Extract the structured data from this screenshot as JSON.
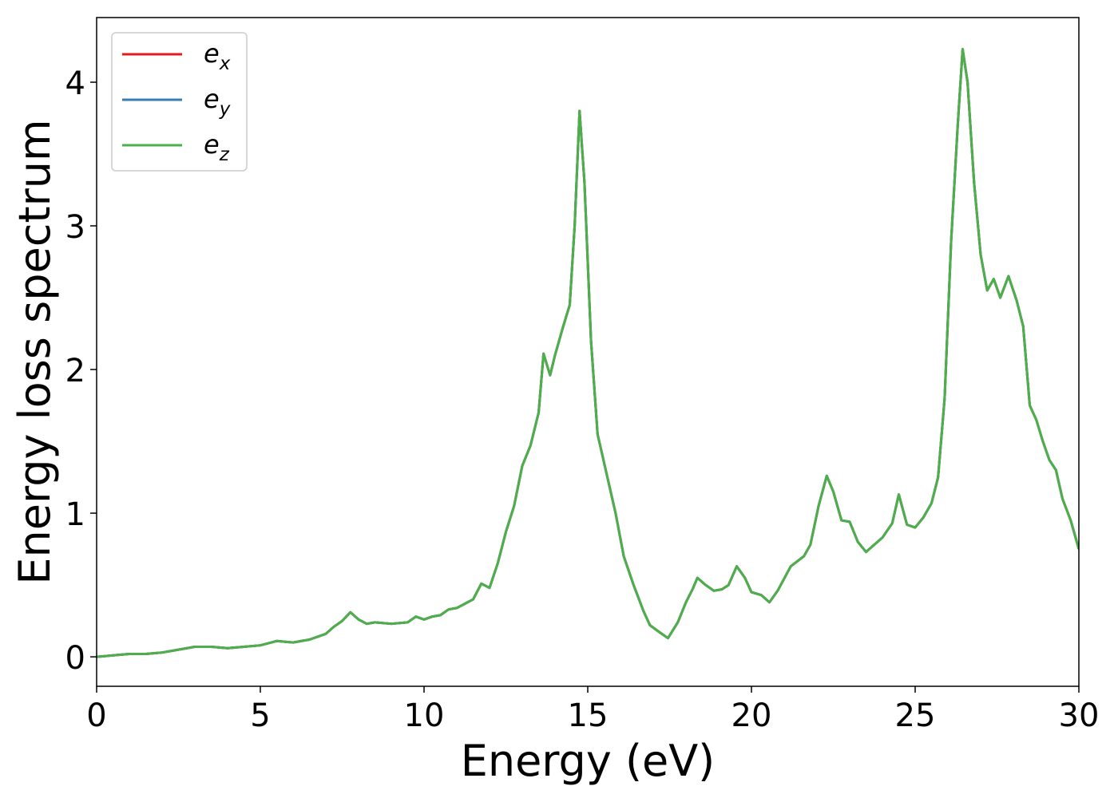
{
  "chart_data": {
    "type": "line",
    "xlabel": "Energy (eV)",
    "ylabel": "Energy loss spectrum",
    "xlim": [
      0,
      30
    ],
    "ylim": [
      -0.205,
      4.45
    ],
    "xticks": [
      0,
      5,
      10,
      15,
      20,
      25,
      30
    ],
    "yticks": [
      0,
      1,
      2,
      3,
      4
    ],
    "legend": "upper left",
    "x": [
      0,
      0.5,
      1,
      1.5,
      2,
      2.5,
      3,
      3.5,
      4,
      4.5,
      5,
      5.5,
      6,
      6.5,
      7,
      7.25,
      7.5,
      7.75,
      8,
      8.25,
      8.5,
      9,
      9.5,
      9.75,
      10,
      10.25,
      10.5,
      10.75,
      11,
      11.25,
      11.5,
      11.75,
      12,
      12.25,
      12.5,
      12.75,
      13,
      13.25,
      13.5,
      13.65,
      13.85,
      14,
      14.25,
      14.45,
      14.6,
      14.75,
      14.9,
      15.1,
      15.3,
      15.6,
      15.85,
      16.1,
      16.4,
      16.7,
      16.9,
      17.2,
      17.45,
      17.75,
      18,
      18.2,
      18.35,
      18.6,
      18.85,
      19.1,
      19.3,
      19.55,
      19.8,
      20,
      20.3,
      20.55,
      20.8,
      21.2,
      21.6,
      21.8,
      22.05,
      22.3,
      22.5,
      22.75,
      23,
      23.25,
      23.5,
      23.75,
      24,
      24.3,
      24.5,
      24.75,
      25,
      25.25,
      25.5,
      25.7,
      25.9,
      26.1,
      26.3,
      26.45,
      26.6,
      26.8,
      27,
      27.2,
      27.4,
      27.6,
      27.85,
      28.1,
      28.3,
      28.5,
      28.7,
      28.9,
      29.1,
      29.3,
      29.5,
      29.75,
      30
    ],
    "series": [
      {
        "name": "ex",
        "color": "#e41a1c",
        "values": [
          0,
          0.01,
          0.02,
          0.02,
          0.03,
          0.05,
          0.07,
          0.07,
          0.06,
          0.07,
          0.08,
          0.11,
          0.1,
          0.12,
          0.16,
          0.21,
          0.25,
          0.31,
          0.26,
          0.23,
          0.24,
          0.23,
          0.24,
          0.28,
          0.26,
          0.28,
          0.29,
          0.33,
          0.34,
          0.37,
          0.4,
          0.51,
          0.48,
          0.65,
          0.87,
          1.05,
          1.33,
          1.47,
          1.7,
          2.11,
          1.96,
          2.1,
          2.3,
          2.45,
          3.0,
          3.8,
          3.3,
          2.2,
          1.55,
          1.25,
          1.0,
          0.7,
          0.5,
          0.32,
          0.22,
          0.17,
          0.13,
          0.24,
          0.38,
          0.47,
          0.55,
          0.5,
          0.46,
          0.47,
          0.5,
          0.63,
          0.55,
          0.45,
          0.43,
          0.38,
          0.46,
          0.63,
          0.7,
          0.78,
          1.05,
          1.26,
          1.15,
          0.95,
          0.94,
          0.8,
          0.73,
          0.78,
          0.83,
          0.93,
          1.13,
          0.92,
          0.9,
          0.97,
          1.07,
          1.25,
          1.8,
          2.9,
          3.7,
          4.23,
          4.0,
          3.3,
          2.8,
          2.55,
          2.63,
          2.5,
          2.65,
          2.48,
          2.3,
          1.75,
          1.65,
          1.5,
          1.37,
          1.3,
          1.1,
          0.95,
          0.75
        ]
      },
      {
        "name": "ey",
        "color": "#377eb8",
        "values": [
          0,
          0.01,
          0.02,
          0.02,
          0.03,
          0.05,
          0.07,
          0.07,
          0.06,
          0.07,
          0.08,
          0.11,
          0.1,
          0.12,
          0.16,
          0.21,
          0.25,
          0.31,
          0.26,
          0.23,
          0.24,
          0.23,
          0.24,
          0.28,
          0.26,
          0.28,
          0.29,
          0.33,
          0.34,
          0.37,
          0.4,
          0.51,
          0.48,
          0.65,
          0.87,
          1.05,
          1.33,
          1.47,
          1.7,
          2.11,
          1.96,
          2.1,
          2.3,
          2.45,
          3.0,
          3.8,
          3.3,
          2.2,
          1.55,
          1.25,
          1.0,
          0.7,
          0.5,
          0.32,
          0.22,
          0.17,
          0.13,
          0.24,
          0.38,
          0.47,
          0.55,
          0.5,
          0.46,
          0.47,
          0.5,
          0.63,
          0.55,
          0.45,
          0.43,
          0.38,
          0.46,
          0.63,
          0.7,
          0.78,
          1.05,
          1.26,
          1.15,
          0.95,
          0.94,
          0.8,
          0.73,
          0.78,
          0.83,
          0.93,
          1.13,
          0.92,
          0.9,
          0.97,
          1.07,
          1.25,
          1.8,
          2.9,
          3.7,
          4.23,
          4.0,
          3.3,
          2.8,
          2.55,
          2.63,
          2.5,
          2.65,
          2.48,
          2.3,
          1.75,
          1.65,
          1.5,
          1.37,
          1.3,
          1.1,
          0.95,
          0.75
        ]
      },
      {
        "name": "ez",
        "color": "#4daf4a",
        "values": [
          0,
          0.01,
          0.02,
          0.02,
          0.03,
          0.05,
          0.07,
          0.07,
          0.06,
          0.07,
          0.08,
          0.11,
          0.1,
          0.12,
          0.16,
          0.21,
          0.25,
          0.31,
          0.26,
          0.23,
          0.24,
          0.23,
          0.24,
          0.28,
          0.26,
          0.28,
          0.29,
          0.33,
          0.34,
          0.37,
          0.4,
          0.51,
          0.48,
          0.65,
          0.87,
          1.05,
          1.33,
          1.47,
          1.7,
          2.11,
          1.96,
          2.1,
          2.3,
          2.45,
          3.0,
          3.8,
          3.3,
          2.2,
          1.55,
          1.25,
          1.0,
          0.7,
          0.5,
          0.32,
          0.22,
          0.17,
          0.13,
          0.24,
          0.38,
          0.47,
          0.55,
          0.5,
          0.46,
          0.47,
          0.5,
          0.63,
          0.55,
          0.45,
          0.43,
          0.38,
          0.46,
          0.63,
          0.7,
          0.78,
          1.05,
          1.26,
          1.15,
          0.95,
          0.94,
          0.8,
          0.73,
          0.78,
          0.83,
          0.93,
          1.13,
          0.92,
          0.9,
          0.97,
          1.07,
          1.25,
          1.8,
          2.9,
          3.7,
          4.23,
          4.0,
          3.3,
          2.8,
          2.55,
          2.63,
          2.5,
          2.65,
          2.48,
          2.3,
          1.75,
          1.65,
          1.5,
          1.37,
          1.3,
          1.1,
          0.95,
          0.75
        ]
      }
    ]
  }
}
